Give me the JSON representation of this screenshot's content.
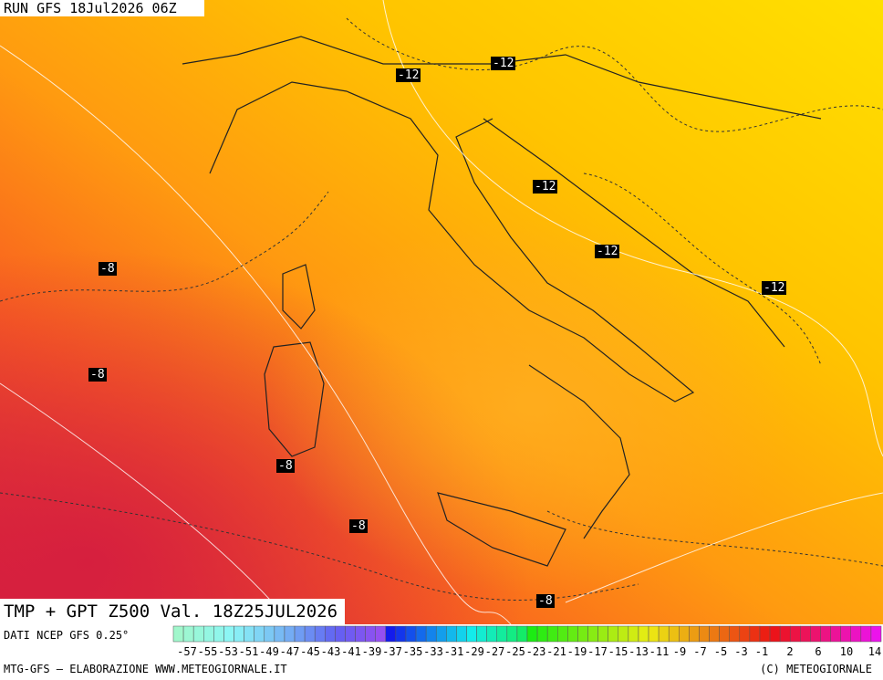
{
  "header": {
    "run": "RUN GFS 18Jul2026 06Z"
  },
  "contour_labels": [
    "-12",
    "-12",
    "-12",
    "-12",
    "-12",
    "-8",
    "-8",
    "-8",
    "-8",
    "-8"
  ],
  "footer": {
    "title": "TMP + GPT Z500 Val. 18Z25JUL2026",
    "source": "DATI NCEP GFS 0.25°",
    "credit": "MTG-GFS — ELABORAZIONE WWW.METEOGIORNALE.IT",
    "copyright": "(C) METEOGIORNALE"
  },
  "colorbar": {
    "labels": [
      -57,
      -55,
      -53,
      -51,
      -49,
      -47,
      -45,
      -43,
      -41,
      -39,
      -37,
      -35,
      -33,
      -31,
      -29,
      -27,
      -25,
      -23,
      -21,
      -19,
      -17,
      -15,
      -13,
      -11,
      -9,
      -7,
      -5,
      -3,
      -1,
      2,
      6,
      10,
      14
    ]
  }
}
